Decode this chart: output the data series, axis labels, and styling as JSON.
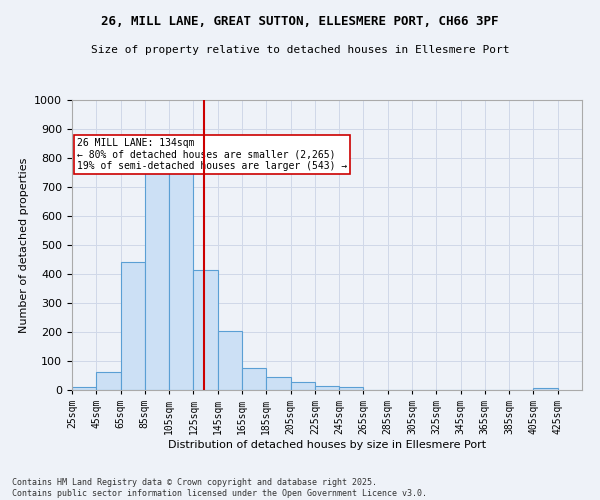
{
  "title_line1": "26, MILL LANE, GREAT SUTTON, ELLESMERE PORT, CH66 3PF",
  "title_line2": "Size of property relative to detached houses in Ellesmere Port",
  "xlabel": "Distribution of detached houses by size in Ellesmere Port",
  "ylabel": "Number of detached properties",
  "bins_left": [
    25,
    45,
    65,
    85,
    105,
    125,
    145,
    165,
    185,
    205,
    225,
    245,
    265,
    285,
    305,
    325,
    345,
    365,
    385,
    405
  ],
  "bin_width": 20,
  "counts": [
    10,
    62,
    443,
    762,
    762,
    415,
    205,
    77,
    44,
    28,
    13,
    10,
    0,
    0,
    0,
    0,
    0,
    0,
    0,
    8
  ],
  "bar_facecolor": "#cce0f5",
  "bar_edgecolor": "#5a9fd4",
  "vline_x": 134,
  "vline_color": "#cc0000",
  "annotation_text": "26 MILL LANE: 134sqm\n← 80% of detached houses are smaller (2,265)\n19% of semi-detached houses are larger (543) →",
  "annotation_box_edgecolor": "#cc0000",
  "annotation_box_facecolor": "#ffffff",
  "ylim": [
    0,
    1000
  ],
  "yticks": [
    0,
    100,
    200,
    300,
    400,
    500,
    600,
    700,
    800,
    900,
    1000
  ],
  "xlim": [
    25,
    445
  ],
  "xtick_labels": [
    "25sqm",
    "45sqm",
    "65sqm",
    "85sqm",
    "105sqm",
    "125sqm",
    "145sqm",
    "165sqm",
    "185sqm",
    "205sqm",
    "225sqm",
    "245sqm",
    "265sqm",
    "285sqm",
    "305sqm",
    "325sqm",
    "345sqm",
    "365sqm",
    "385sqm",
    "405sqm",
    "425sqm"
  ],
  "xtick_positions": [
    25,
    45,
    65,
    85,
    105,
    125,
    145,
    165,
    185,
    205,
    225,
    245,
    265,
    285,
    305,
    325,
    345,
    365,
    385,
    405,
    425
  ],
  "grid_color": "#d0d8e8",
  "background_color": "#eef2f8",
  "footnote": "Contains HM Land Registry data © Crown copyright and database right 2025.\nContains public sector information licensed under the Open Government Licence v3.0."
}
